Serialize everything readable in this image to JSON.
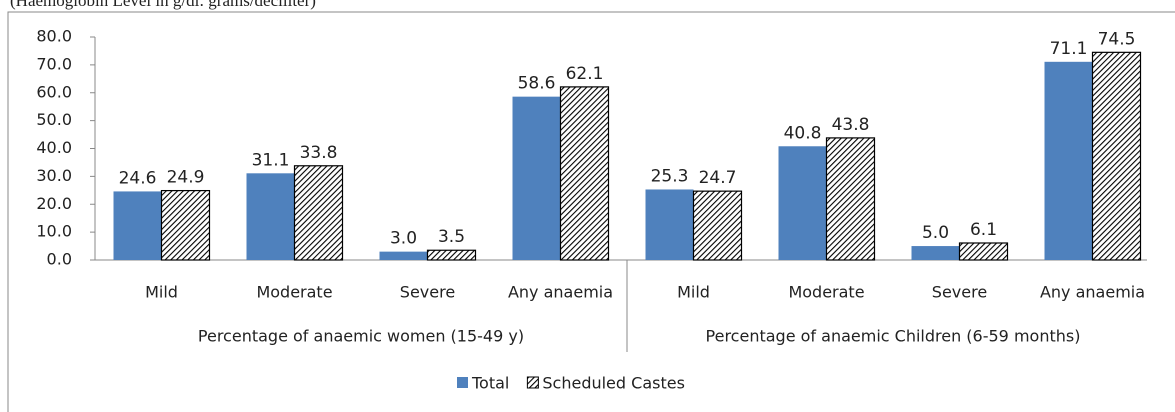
{
  "chart_data": {
    "type": "bar",
    "subtitle": "(Haemoglobin Level in g/dl: grams/deciliter)",
    "categories": [
      "Mild",
      "Moderate",
      "Severe",
      "Any anaemia",
      "Mild",
      "Moderate",
      "Severe",
      "Any anaemia"
    ],
    "groups": [
      "Percentage of anaemic women (15-49 y)",
      "Percentage of anaemic Children (6-59 months)"
    ],
    "series": [
      {
        "name": "Total",
        "color": "#4f81bd",
        "values": [
          24.6,
          31.1,
          3.0,
          58.6,
          25.3,
          40.8,
          5.0,
          71.1
        ],
        "value_labels": [
          "24.6",
          "31.1",
          "3.0",
          "58.6",
          "25.3",
          "40.8",
          "5.0",
          "71.1"
        ]
      },
      {
        "name": "Scheduled Castes",
        "color": "hatch",
        "values": [
          24.9,
          33.8,
          3.5,
          62.1,
          24.7,
          43.8,
          6.1,
          74.5
        ],
        "value_labels": [
          "24.9",
          "33.8",
          "3.5",
          "62.1",
          "24.7",
          "43.8",
          "6.1",
          "74.5"
        ]
      }
    ],
    "ylim": [
      0,
      80
    ],
    "yticks": [
      {
        "value": 0,
        "label": "0.0"
      },
      {
        "value": 10,
        "label": "10.0"
      },
      {
        "value": 20,
        "label": "20.0"
      },
      {
        "value": 30,
        "label": "30.0"
      },
      {
        "value": 40,
        "label": "40.0"
      },
      {
        "value": 50,
        "label": "50.0"
      },
      {
        "value": 60,
        "label": "60.0"
      },
      {
        "value": 70,
        "label": "70.0"
      },
      {
        "value": 80,
        "label": "80.0"
      }
    ],
    "legend": "bottom"
  }
}
